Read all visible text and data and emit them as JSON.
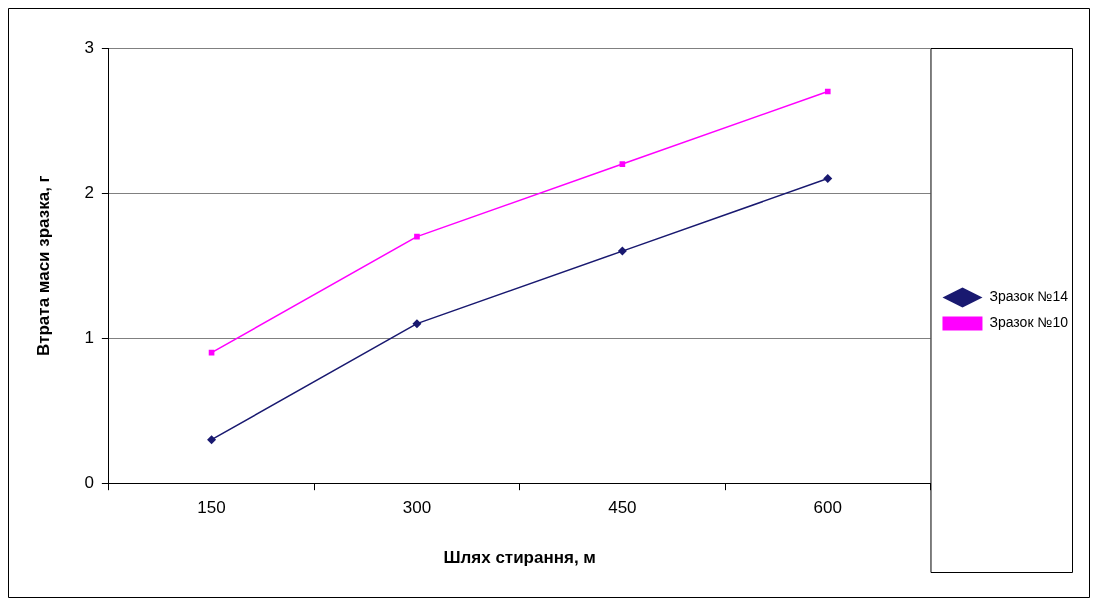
{
  "chart_data": {
    "type": "line",
    "xlabel": "Шлях стирання, м",
    "ylabel": "Втрата маси зразка, г",
    "categories": [
      "150",
      "300",
      "450",
      "600"
    ],
    "series": [
      {
        "name": "Зразок №14",
        "color": "#191970",
        "values": [
          0.3,
          1.1,
          1.6,
          2.1
        ],
        "marker": "diamond"
      },
      {
        "name": "Зразок №10",
        "color": "#ff00ff",
        "values": [
          0.9,
          1.7,
          2.2,
          2.7
        ],
        "marker": "square"
      }
    ],
    "ylim": [
      0,
      3
    ],
    "yticks": [
      0,
      1,
      2,
      3
    ],
    "grid": "y",
    "legend": "right",
    "line_style": "solid"
  }
}
